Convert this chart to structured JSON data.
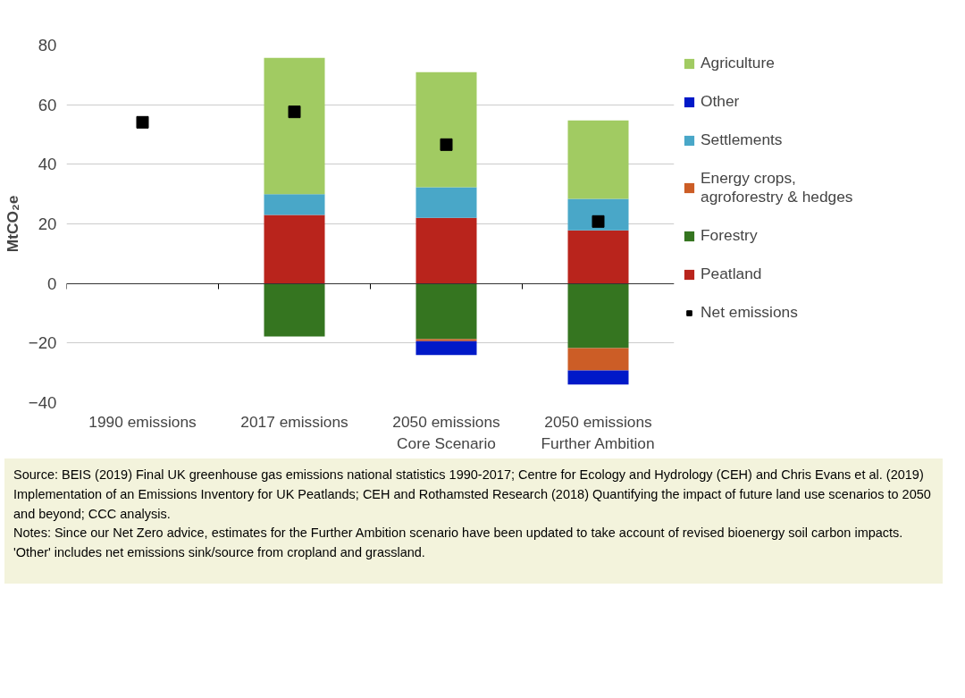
{
  "chart_data": {
    "type": "bar",
    "stacked": true,
    "categories": [
      "1990 emissions",
      "2017 emissions",
      "2050 emissions\nCore Scenario",
      "2050 emissions\nFurther Ambition"
    ],
    "ylabel": "MtCO₂e",
    "series": [
      {
        "name": "Peatland",
        "color": "#b9241c",
        "values": [
          null,
          23,
          22,
          17.8
        ]
      },
      {
        "name": "Forestry",
        "color": "#357520",
        "values": [
          null,
          -17.8,
          -18.7,
          -21.7
        ]
      },
      {
        "name": "Energy crops,\nagroforestry & hedges",
        "color": "#cc5d26",
        "values": [
          null,
          null,
          -0.7,
          -7.5
        ]
      },
      {
        "name": "Settlements",
        "color": "#49a7c8",
        "values": [
          null,
          7,
          10.3,
          10.6
        ]
      },
      {
        "name": "Other",
        "color": "#0019c8",
        "values": [
          null,
          null,
          -4.6,
          -4.7
        ]
      },
      {
        "name": "Agriculture",
        "color": "#a1cb62",
        "values": [
          null,
          45.7,
          38.6,
          26.3
        ]
      },
      {
        "name": "Net emissions",
        "type": "scatter",
        "marker": "square",
        "color": "#000000",
        "values": [
          54.1,
          57.6,
          46.6,
          20.8
        ]
      }
    ],
    "ylim": [
      -40,
      80
    ],
    "yticks": [
      -40,
      -20,
      0,
      20,
      40,
      60,
      80
    ],
    "grid": "y",
    "legend": "right",
    "annotations": [
      "Source: BEIS (2019) Final UK greenhouse gas emissions national statistics 1990-2017; Centre for Ecology and Hydrology (CEH) and Chris Evans et al. (2019) Implementation of an Emissions Inventory for UK Peatlands; CEH and Rothamsted Research (2018) Quantifying the impact of future land use scenarios to 2050 and beyond; CCC analysis.",
      "Notes: Since our Net Zero advice, estimates for the Further Ambition scenario have been updated to take account of revised bioenergy soil carbon impacts. 'Other' includes net emissions sink/source from cropland and grassland."
    ]
  }
}
